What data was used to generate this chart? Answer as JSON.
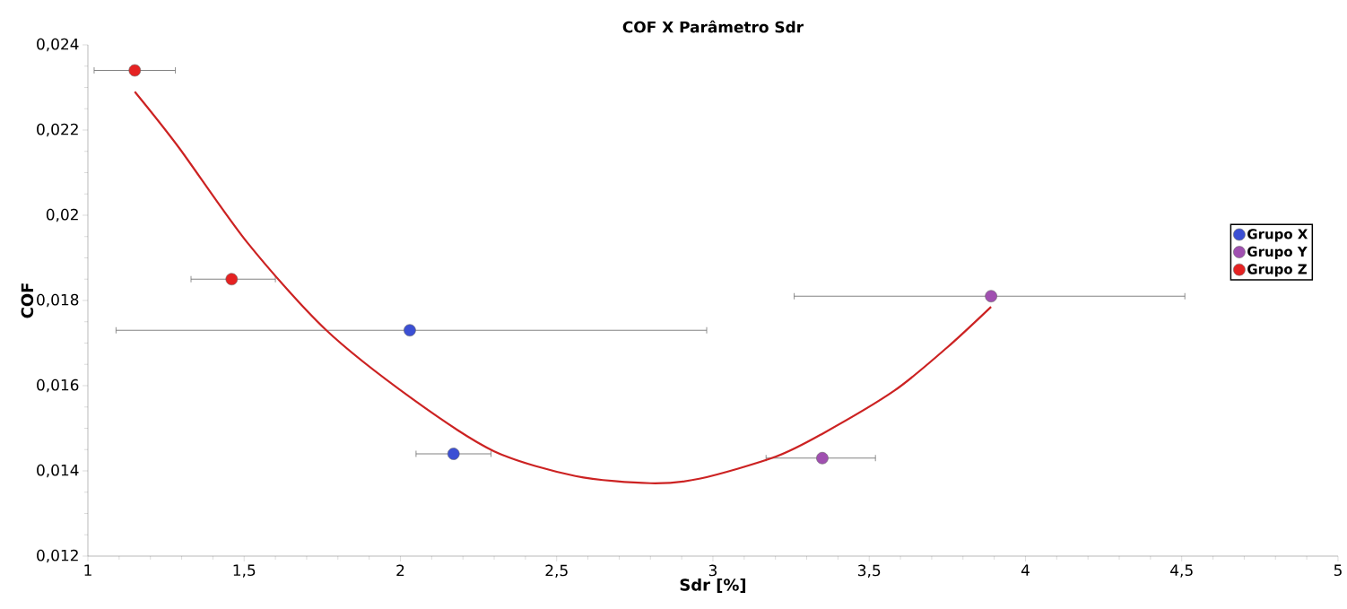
{
  "chart_data": {
    "type": "scatter",
    "title": "COF X Parâmetro Sdr",
    "xlabel": "Sdr [%]",
    "ylabel": "COF",
    "xlim": [
      1,
      5
    ],
    "ylim": [
      0.012,
      0.024
    ],
    "xticks": [
      1,
      {
        "value": 1.5,
        "label": "1,5"
      },
      2,
      {
        "value": 2.5,
        "label": "2,5"
      },
      3,
      {
        "value": 3.5,
        "label": "3,5"
      },
      4,
      {
        "value": 4.5,
        "label": "4,5"
      },
      5
    ],
    "yticks": [
      {
        "value": 0.012,
        "label": "0,012"
      },
      {
        "value": 0.014,
        "label": "0,014"
      },
      {
        "value": 0.016,
        "label": "0,016"
      },
      {
        "value": 0.018,
        "label": "0,018"
      },
      {
        "value": 0.02,
        "label": "0,02"
      },
      {
        "value": 0.022,
        "label": "0,022"
      },
      {
        "value": 0.024,
        "label": "0,024"
      }
    ],
    "grid": false,
    "legend": "right",
    "marker": "circle",
    "series": [
      {
        "name": "Grupo X",
        "color": "#3b4fd4",
        "x": [
          2.03,
          2.17
        ],
        "values": [
          0.0173,
          0.0144
        ],
        "xerrors": [
          [
            1.09,
            2.98
          ],
          [
            2.05,
            2.29
          ]
        ]
      },
      {
        "name": "Grupo Y",
        "color": "#a050b0",
        "x": [
          3.35,
          3.89
        ],
        "values": [
          0.0143,
          0.0181
        ],
        "xerrors": [
          [
            3.17,
            3.52
          ],
          [
            3.26,
            4.51
          ]
        ]
      },
      {
        "name": "Grupo Z",
        "color": "#e52222",
        "x": [
          1.15,
          1.46
        ],
        "values": [
          0.0234,
          0.0185
        ],
        "xerrors": [
          [
            1.02,
            1.28
          ],
          [
            1.33,
            1.6
          ]
        ]
      },
      {
        "type": "line",
        "color": "#cc2222",
        "marker": "none",
        "x": [
          1.15,
          1.29,
          1.51,
          1.76,
          2.04,
          2.3,
          2.56,
          2.8,
          2.96,
          3.2,
          3.35,
          3.58,
          3.75,
          3.89
        ],
        "values": [
          0.0229,
          0.0216,
          0.01936,
          0.01732,
          0.01568,
          0.01446,
          0.01388,
          0.01371,
          0.01382,
          0.01433,
          0.01487,
          0.01588,
          0.0169,
          0.01785
        ]
      }
    ]
  }
}
